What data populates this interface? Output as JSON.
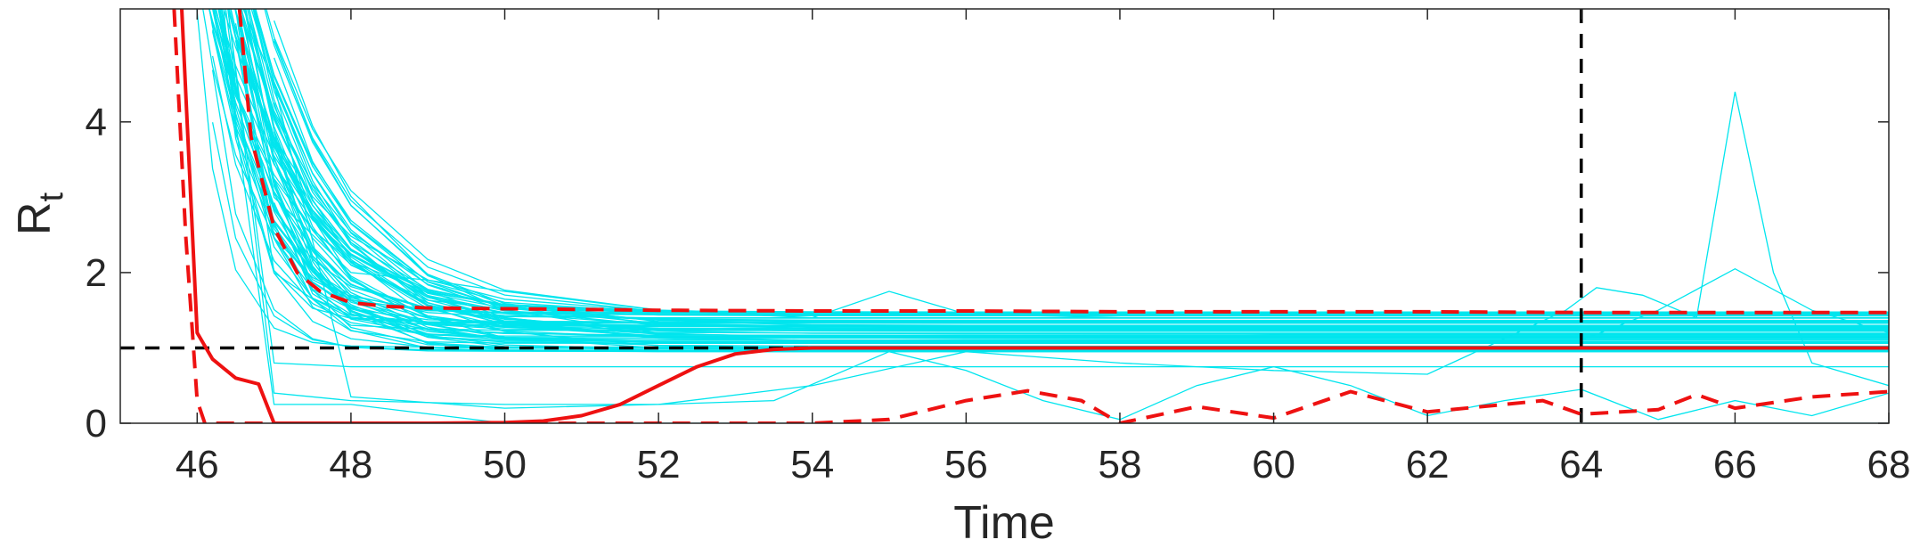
{
  "chart_data": {
    "type": "line",
    "title": "",
    "xlabel": "Time",
    "ylabel": "R",
    "ylabel_subscript": "t",
    "xlim": [
      45,
      68
    ],
    "ylim": [
      0,
      5.5
    ],
    "xticks": [
      46,
      48,
      50,
      52,
      54,
      56,
      58,
      60,
      62,
      64,
      66,
      68
    ],
    "yticks": [
      0,
      2,
      4
    ],
    "grid": false,
    "legend": "none",
    "colors": {
      "samples": "#00E5EE",
      "red": "#EE1111",
      "reference": "#000000"
    },
    "reference_lines": [
      {
        "orientation": "horizontal",
        "value": 1,
        "style": "dashed"
      },
      {
        "orientation": "vertical",
        "value": 64,
        "style": "dashed"
      }
    ],
    "series": [
      {
        "style": "solid",
        "color": "red",
        "x": [
          45.8,
          46.0,
          46.2,
          46.5,
          46.8,
          47.0,
          48,
          49,
          50,
          50.5,
          51,
          51.5,
          52,
          52.5,
          53,
          53.5,
          54,
          55,
          56,
          58,
          60,
          62,
          64,
          66,
          68
        ],
        "y": [
          5.5,
          1.2,
          0.85,
          0.6,
          0.52,
          0.0,
          0.0,
          0.0,
          0.01,
          0.03,
          0.1,
          0.25,
          0.5,
          0.75,
          0.92,
          0.98,
          1.0,
          1.0,
          1.0,
          1.0,
          1.0,
          1.0,
          1.0,
          1.0,
          1.0
        ]
      },
      {
        "style": "dashed",
        "color": "red",
        "x": [
          46.55,
          46.7,
          47.0,
          47.3,
          47.6,
          48,
          48.5,
          49,
          50,
          51,
          52,
          54,
          56,
          58,
          60,
          62,
          64,
          66,
          68
        ],
        "y": [
          5.5,
          3.8,
          2.6,
          2.0,
          1.75,
          1.6,
          1.55,
          1.53,
          1.52,
          1.51,
          1.5,
          1.49,
          1.49,
          1.48,
          1.48,
          1.48,
          1.47,
          1.47,
          1.47
        ]
      },
      {
        "style": "dashed",
        "color": "red",
        "x": [
          45.7,
          45.85,
          46.0,
          46.1,
          47,
          50,
          54,
          55,
          56,
          56.8,
          57.5,
          58,
          59,
          60,
          61,
          62,
          63,
          63.5,
          64,
          65,
          65.5,
          66,
          67,
          68
        ],
        "y": [
          5.5,
          2.5,
          0.3,
          0.0,
          0.0,
          0.0,
          0.0,
          0.05,
          0.3,
          0.43,
          0.3,
          0.0,
          0.22,
          0.07,
          0.42,
          0.15,
          0.25,
          0.3,
          0.12,
          0.18,
          0.38,
          0.2,
          0.35,
          0.42
        ]
      }
    ],
    "samples": {
      "color": "samples",
      "count": 75,
      "model": "decay from early peak at x=45.8-46.6 to steady level",
      "steady_min": 0.95,
      "steady_max": 1.5,
      "x": [
        45.9,
        46.2,
        46.5,
        47.0,
        47.5,
        48,
        49,
        50,
        52,
        54,
        56,
        58,
        60,
        62,
        64,
        66,
        68
      ],
      "notable_curves": [
        {
          "x": [
            46.5,
            47,
            48,
            49,
            50,
            52,
            54,
            55,
            55.5,
            56,
            58,
            60,
            62,
            64,
            66,
            68
          ],
          "y": [
            5.5,
            3,
            2,
            1.9,
            1.75,
            1.5,
            1.4,
            1.75,
            1.6,
            1.45,
            1.4,
            1.4,
            1.4,
            1.4,
            1.4,
            1.4
          ]
        },
        {
          "x": [
            46.6,
            47,
            48,
            50,
            52,
            54,
            56,
            58,
            60,
            62,
            63.8,
            64.2,
            64.8,
            65.5,
            66,
            66.5,
            67,
            68
          ],
          "y": [
            5.5,
            4.5,
            0.35,
            0.2,
            0.25,
            0.5,
            0.95,
            0.8,
            0.7,
            0.65,
            1.5,
            1.8,
            1.7,
            1.4,
            4.4,
            2.0,
            0.8,
            0.5
          ]
        },
        {
          "x": [
            46.5,
            47,
            48,
            50,
            52,
            54,
            56,
            58,
            60,
            62,
            64,
            65,
            66,
            67,
            68
          ],
          "y": [
            5.5,
            2,
            1.3,
            1.2,
            1.15,
            1.1,
            1.1,
            1.1,
            1.1,
            1.1,
            1.1,
            1.5,
            2.05,
            1.5,
            1.2
          ]
        },
        {
          "x": [
            46.3,
            47,
            48,
            50,
            52,
            54,
            56,
            58,
            60,
            62,
            64,
            66,
            68
          ],
          "y": [
            5.5,
            0.25,
            0.25,
            0.0,
            0.0,
            0.0,
            0.0,
            0.0,
            0.0,
            0.0,
            0.0,
            0.0,
            0.0
          ]
        },
        {
          "x": [
            46.4,
            47,
            48,
            50,
            52,
            53.5,
            55,
            56,
            57,
            58,
            59,
            60,
            61,
            62,
            63,
            64,
            65,
            66,
            67,
            68
          ],
          "y": [
            5.5,
            0.4,
            0.3,
            0.25,
            0.25,
            0.3,
            0.95,
            0.7,
            0.3,
            0.05,
            0.5,
            0.75,
            0.5,
            0.1,
            0.3,
            0.45,
            0.05,
            0.3,
            0.1,
            0.4
          ]
        },
        {
          "x": [
            46.4,
            47,
            48,
            50,
            52,
            54,
            56,
            58,
            60,
            62,
            64,
            66,
            68
          ],
          "y": [
            5.5,
            0.8,
            0.75,
            0.75,
            0.75,
            0.75,
            0.75,
            0.75,
            0.75,
            0.75,
            0.75,
            0.75,
            0.75
          ]
        }
      ]
    }
  }
}
